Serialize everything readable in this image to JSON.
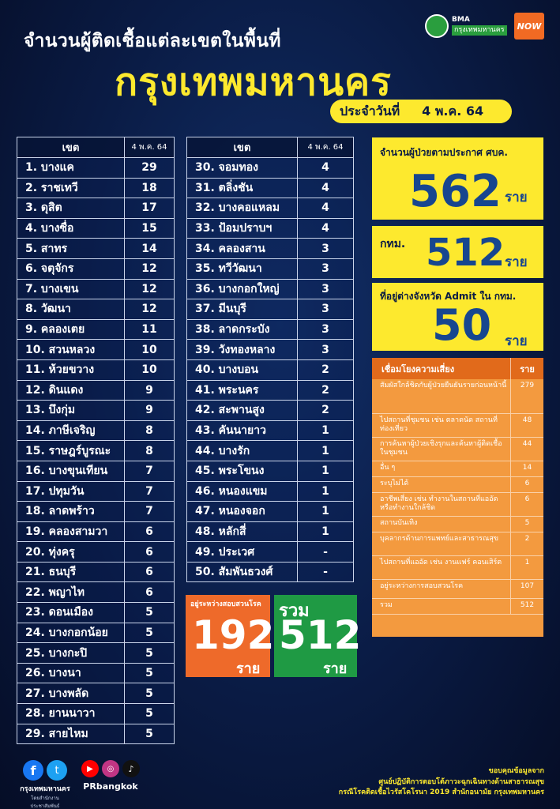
{
  "header": {
    "title_line1": "จำนวนผู้ติดเชื้อแต่ละเขตในพื้นที่",
    "title_line2": "กรุงเทพมหานคร",
    "date_label": "ประจำวันที่",
    "date_value": "4 พ.ค. 64",
    "logo_bma_top": "BMA",
    "logo_bma_bottom": "กรุงเทพมหานคร",
    "logo_now": "NOW"
  },
  "table": {
    "col_district": "เขต",
    "col_date": "4 พ.ค. 64",
    "left": [
      {
        "name": "1. บางแค",
        "count": "29"
      },
      {
        "name": "2. ราชเทวี",
        "count": "18"
      },
      {
        "name": "3. ดุสิต",
        "count": "17"
      },
      {
        "name": "4. บางซื่อ",
        "count": "15"
      },
      {
        "name": "5. สาทร",
        "count": "14"
      },
      {
        "name": "6. จตุจักร",
        "count": "12"
      },
      {
        "name": "7. บางเขน",
        "count": "12"
      },
      {
        "name": "8. วัฒนา",
        "count": "12"
      },
      {
        "name": "9. คลองเตย",
        "count": "11"
      },
      {
        "name": "10. สวนหลวง",
        "count": "10"
      },
      {
        "name": "11. ห้วยขวาง",
        "count": "10"
      },
      {
        "name": "12. ดินแดง",
        "count": "9"
      },
      {
        "name": "13. บึงกุ่ม",
        "count": "9"
      },
      {
        "name": "14. ภาษีเจริญ",
        "count": "8"
      },
      {
        "name": "15. ราษฎร์บูรณะ",
        "count": "8"
      },
      {
        "name": "16. บางขุนเทียน",
        "count": "7"
      },
      {
        "name": "17. ปทุมวัน",
        "count": "7"
      },
      {
        "name": "18. ลาดพร้าว",
        "count": "7"
      },
      {
        "name": "19. คลองสามวา",
        "count": "6"
      },
      {
        "name": "20. ทุ่งครุ",
        "count": "6"
      },
      {
        "name": "21. ธนบุรี",
        "count": "6"
      },
      {
        "name": "22. พญาไท",
        "count": "6"
      },
      {
        "name": "23. ดอนเมือง",
        "count": "5"
      },
      {
        "name": "24. บางกอกน้อย",
        "count": "5"
      },
      {
        "name": "25. บางกะปิ",
        "count": "5"
      },
      {
        "name": "26. บางนา",
        "count": "5"
      },
      {
        "name": "27. บางพลัด",
        "count": "5"
      },
      {
        "name": "28. ยานนาวา",
        "count": "5"
      },
      {
        "name": "29. สายไหม",
        "count": "5"
      }
    ],
    "right": [
      {
        "name": "30. จอมทอง",
        "count": "4"
      },
      {
        "name": "31. ตลิ่งชัน",
        "count": "4"
      },
      {
        "name": "32. บางคอแหลม",
        "count": "4"
      },
      {
        "name": "33. ป้อมปราบฯ",
        "count": "4"
      },
      {
        "name": "34. คลองสาน",
        "count": "3"
      },
      {
        "name": "35. ทวีวัฒนา",
        "count": "3"
      },
      {
        "name": "36. บางกอกใหญ่",
        "count": "3"
      },
      {
        "name": "37. มีนบุรี",
        "count": "3"
      },
      {
        "name": "38. ลาดกระบัง",
        "count": "3"
      },
      {
        "name": "39. วังทองหลาง",
        "count": "3"
      },
      {
        "name": "40. บางบอน",
        "count": "2"
      },
      {
        "name": "41. พระนคร",
        "count": "2"
      },
      {
        "name": "42. สะพานสูง",
        "count": "2"
      },
      {
        "name": "43. คันนายาว",
        "count": "1"
      },
      {
        "name": "44. บางรัก",
        "count": "1"
      },
      {
        "name": "45. พระโขนง",
        "count": "1"
      },
      {
        "name": "46. หนองแขม",
        "count": "1"
      },
      {
        "name": "47. หนองจอก",
        "count": "1"
      },
      {
        "name": "48. หลักสี่",
        "count": "1"
      },
      {
        "name": "49. ประเวศ",
        "count": "-"
      },
      {
        "name": "50. สัมพันธวงศ์",
        "count": "-"
      }
    ]
  },
  "stats": {
    "announced_label": "จำนวนผู้ป่วยตามประกาศ ศบค.",
    "announced_value": "562",
    "bkk_label": "กทม.",
    "bkk_value": "512",
    "other_label": "ที่อยู่ต่างจังหวัด Admit ใน กทม.",
    "other_value": "50",
    "unit": "ราย"
  },
  "risk": {
    "col_label": "เชื่อมโยงความเสี่ยง",
    "col_unit": "ราย",
    "rows": [
      {
        "label": "สัมผัสใกล้ชิดกับผู้ป่วยยืนยันรายก่อนหน้านี้",
        "value": "279"
      },
      {
        "label": "ไปสถานที่ชุมชน เช่น ตลาดนัด สถานที่ท่องเที่ยว",
        "value": "48"
      },
      {
        "label": "การค้นหาผู้ป่วยเชิงรุกและค้นหาผู้ติดเชื้อในชุมชน",
        "value": "44"
      },
      {
        "label": "อื่น ๆ",
        "value": "14"
      },
      {
        "label": "ระบุไม่ได้",
        "value": "6"
      },
      {
        "label": "อาชีพเสี่ยง เช่น ทำงานในสถานที่แออัด หรือทำงานใกล้ชิด",
        "value": "6"
      },
      {
        "label": "สถานบันเทิง",
        "value": "5"
      },
      {
        "label": "บุคลากรด้านการแพทย์และสาธารณสุข",
        "value": "2"
      },
      {
        "label": "ไปสถานที่แออัด เช่น งานแฟร์ คอนเสิร์ต",
        "value": "1"
      },
      {
        "label": "อยู่ระหว่างการสอบสวนโรค",
        "value": "107"
      },
      {
        "label": "รวม",
        "value": "512"
      }
    ]
  },
  "summary": {
    "investigating_label": "อยู่ระหว่างสอบสวนโรค",
    "investigating_value": "192",
    "total_label": "รวม",
    "total_value": "512",
    "unit": "ราย"
  },
  "footer": {
    "fb_glyph": "f",
    "tw_glyph": "t",
    "yt_glyph": "▶",
    "ig_glyph": "◎",
    "tt_glyph": "♪",
    "left_name": "กรุงเทพมหานคร",
    "left_sub": "โดยสำนักงานประชาสัมพันธ์",
    "right_name": "PRbangkok",
    "credit1": "ขอบคุณข้อมูลจาก",
    "credit2": "ศูนย์ปฏิบัติการตอบโต้ภาวะฉุกเฉินทางด้านสาธารณสุข",
    "credit3": "กรณีโรคติดเชื้อไวรัสโคโรนา 2019 สำนักอนามัย กรุงเทพมหานคร"
  }
}
